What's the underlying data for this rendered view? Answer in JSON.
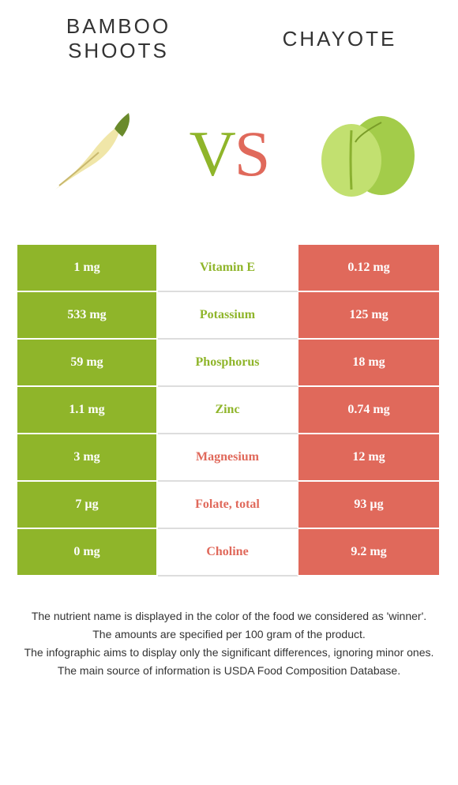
{
  "colors": {
    "left_food": "#8fb52a",
    "right_food": "#e0695b",
    "cell_text": "#ffffff",
    "mid_border": "#dddddd",
    "title_text": "#333333",
    "footer_text": "#333333",
    "bamboo_body": "#f0e6a8",
    "bamboo_leaf": "#6a8a2b",
    "chayote_body": "#a3cc4a",
    "chayote_light": "#c2e070"
  },
  "header": {
    "left_title": "BAMBOO SHOOTS",
    "right_title": "CHAYOTE"
  },
  "vs": {
    "v": "V",
    "s": "S"
  },
  "rows": [
    {
      "left": "1 mg",
      "mid": "Vitamin E",
      "right": "0.12 mg",
      "winner": "left"
    },
    {
      "left": "533 mg",
      "mid": "Potassium",
      "right": "125 mg",
      "winner": "left"
    },
    {
      "left": "59 mg",
      "mid": "Phosphorus",
      "right": "18 mg",
      "winner": "left"
    },
    {
      "left": "1.1 mg",
      "mid": "Zinc",
      "right": "0.74 mg",
      "winner": "left"
    },
    {
      "left": "3 mg",
      "mid": "Magnesium",
      "right": "12 mg",
      "winner": "right"
    },
    {
      "left": "7 µg",
      "mid": "Folate, total",
      "right": "93 µg",
      "winner": "right"
    },
    {
      "left": "0 mg",
      "mid": "Choline",
      "right": "9.2 mg",
      "winner": "right"
    }
  ],
  "footer": {
    "line1": "The nutrient name is displayed in the color of the food we considered as 'winner'.",
    "line2": "The amounts are specified per 100 gram of the product.",
    "line3": "The infographic aims to display only the significant differences, ignoring minor ones.",
    "line4": "The main source of information is USDA Food Composition Database."
  }
}
